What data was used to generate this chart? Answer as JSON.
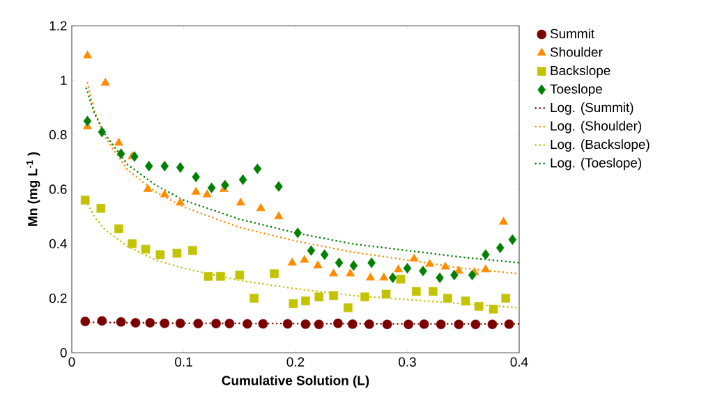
{
  "chart_data": {
    "type": "scatter",
    "xlabel": "Cumulative Solution (L)",
    "ylabel": "Mn (mg L$^{-1}$ )",
    "xlim": [
      0,
      0.4
    ],
    "xticks": [
      0,
      0.1,
      0.2,
      0.3,
      0.4
    ],
    "ylim": [
      0,
      1.2
    ],
    "yticks": [
      0,
      0.2,
      0.4,
      0.6,
      0.8,
      1,
      1.2
    ],
    "grid": false,
    "legend": "right",
    "series": [
      {
        "name": "Summit",
        "color": "#7b0000",
        "marker": "circle",
        "x": [
          0.012,
          0.027,
          0.044,
          0.057,
          0.07,
          0.083,
          0.097,
          0.113,
          0.129,
          0.141,
          0.157,
          0.171,
          0.193,
          0.209,
          0.221,
          0.238,
          0.251,
          0.266,
          0.282,
          0.301,
          0.315,
          0.33,
          0.346,
          0.361,
          0.376,
          0.391
        ],
        "values": [
          0.115,
          0.117,
          0.113,
          0.11,
          0.11,
          0.108,
          0.108,
          0.107,
          0.107,
          0.107,
          0.106,
          0.106,
          0.106,
          0.105,
          0.104,
          0.108,
          0.105,
          0.105,
          0.104,
          0.104,
          0.105,
          0.104,
          0.104,
          0.104,
          0.104,
          0.105
        ]
      },
      {
        "name": "Shoulder",
        "color": "#ff8c00",
        "marker": "triangle",
        "x": [
          0.014,
          0.014,
          0.03,
          0.042,
          0.054,
          0.068,
          0.083,
          0.097,
          0.111,
          0.121,
          0.136,
          0.151,
          0.169,
          0.185,
          0.197,
          0.208,
          0.22,
          0.234,
          0.249,
          0.267,
          0.279,
          0.292,
          0.306,
          0.32,
          0.334,
          0.346,
          0.36,
          0.37,
          0.386
        ],
        "values": [
          1.09,
          0.83,
          0.99,
          0.77,
          0.72,
          0.6,
          0.58,
          0.55,
          0.59,
          0.58,
          0.6,
          0.55,
          0.53,
          0.5,
          0.33,
          0.34,
          0.32,
          0.29,
          0.29,
          0.275,
          0.275,
          0.305,
          0.345,
          0.325,
          0.315,
          0.3,
          0.295,
          0.305,
          0.48
        ]
      },
      {
        "name": "Backslope",
        "color": "#c3c300",
        "marker": "square",
        "x": [
          0.012,
          0.026,
          0.042,
          0.054,
          0.066,
          0.079,
          0.094,
          0.108,
          0.122,
          0.133,
          0.15,
          0.163,
          0.181,
          0.198,
          0.209,
          0.221,
          0.234,
          0.247,
          0.262,
          0.281,
          0.294,
          0.308,
          0.323,
          0.336,
          0.352,
          0.364,
          0.377,
          0.388
        ],
        "values": [
          0.56,
          0.53,
          0.455,
          0.4,
          0.38,
          0.36,
          0.365,
          0.375,
          0.28,
          0.28,
          0.285,
          0.2,
          0.29,
          0.18,
          0.19,
          0.205,
          0.21,
          0.165,
          0.205,
          0.215,
          0.27,
          0.225,
          0.225,
          0.2,
          0.19,
          0.17,
          0.16,
          0.2
        ]
      },
      {
        "name": "Toeslope",
        "color": "#008000",
        "marker": "diamond",
        "x": [
          0.014,
          0.027,
          0.044,
          0.056,
          0.069,
          0.083,
          0.097,
          0.111,
          0.125,
          0.137,
          0.153,
          0.166,
          0.185,
          0.202,
          0.214,
          0.226,
          0.239,
          0.252,
          0.268,
          0.287,
          0.3,
          0.314,
          0.329,
          0.342,
          0.358,
          0.37,
          0.383,
          0.394
        ],
        "values": [
          0.85,
          0.81,
          0.73,
          0.72,
          0.685,
          0.685,
          0.68,
          0.645,
          0.605,
          0.615,
          0.635,
          0.675,
          0.61,
          0.44,
          0.375,
          0.36,
          0.33,
          0.32,
          0.33,
          0.275,
          0.31,
          0.3,
          0.275,
          0.285,
          0.285,
          0.36,
          0.385,
          0.415
        ]
      },
      {
        "name": "Log. (Summit)",
        "type": "line",
        "line_style": "dotted",
        "marker": "none",
        "color": "#7b0000",
        "x": [
          0.012,
          0.1,
          0.2,
          0.3,
          0.4
        ],
        "values": [
          0.112,
          0.108,
          0.107,
          0.106,
          0.106
        ]
      },
      {
        "name": "Log. (Shoulder)",
        "type": "line",
        "line_style": "dotted",
        "marker": "none",
        "color": "#ff8c00",
        "x": [
          0.014,
          0.02,
          0.03,
          0.05,
          0.075,
          0.1,
          0.15,
          0.2,
          0.25,
          0.3,
          0.35,
          0.4
        ],
        "values": [
          0.99,
          0.89,
          0.79,
          0.67,
          0.59,
          0.535,
          0.46,
          0.41,
          0.37,
          0.34,
          0.31,
          0.29
        ]
      },
      {
        "name": "Log. (Backslope)",
        "type": "line",
        "line_style": "dotted",
        "marker": "none",
        "color": "#c3c300",
        "x": [
          0.011,
          0.02,
          0.03,
          0.05,
          0.075,
          0.1,
          0.15,
          0.2,
          0.25,
          0.3,
          0.35,
          0.4
        ],
        "values": [
          0.57,
          0.5,
          0.45,
          0.39,
          0.34,
          0.31,
          0.265,
          0.235,
          0.21,
          0.195,
          0.18,
          0.165
        ]
      },
      {
        "name": "Log. (Toeslope)",
        "type": "line",
        "line_style": "dotted",
        "marker": "none",
        "color": "#008000",
        "x": [
          0.013,
          0.02,
          0.03,
          0.05,
          0.075,
          0.1,
          0.15,
          0.2,
          0.25,
          0.3,
          0.35,
          0.4
        ],
        "values": [
          0.97,
          0.88,
          0.8,
          0.69,
          0.615,
          0.56,
          0.49,
          0.44,
          0.4,
          0.375,
          0.35,
          0.33
        ]
      }
    ]
  }
}
